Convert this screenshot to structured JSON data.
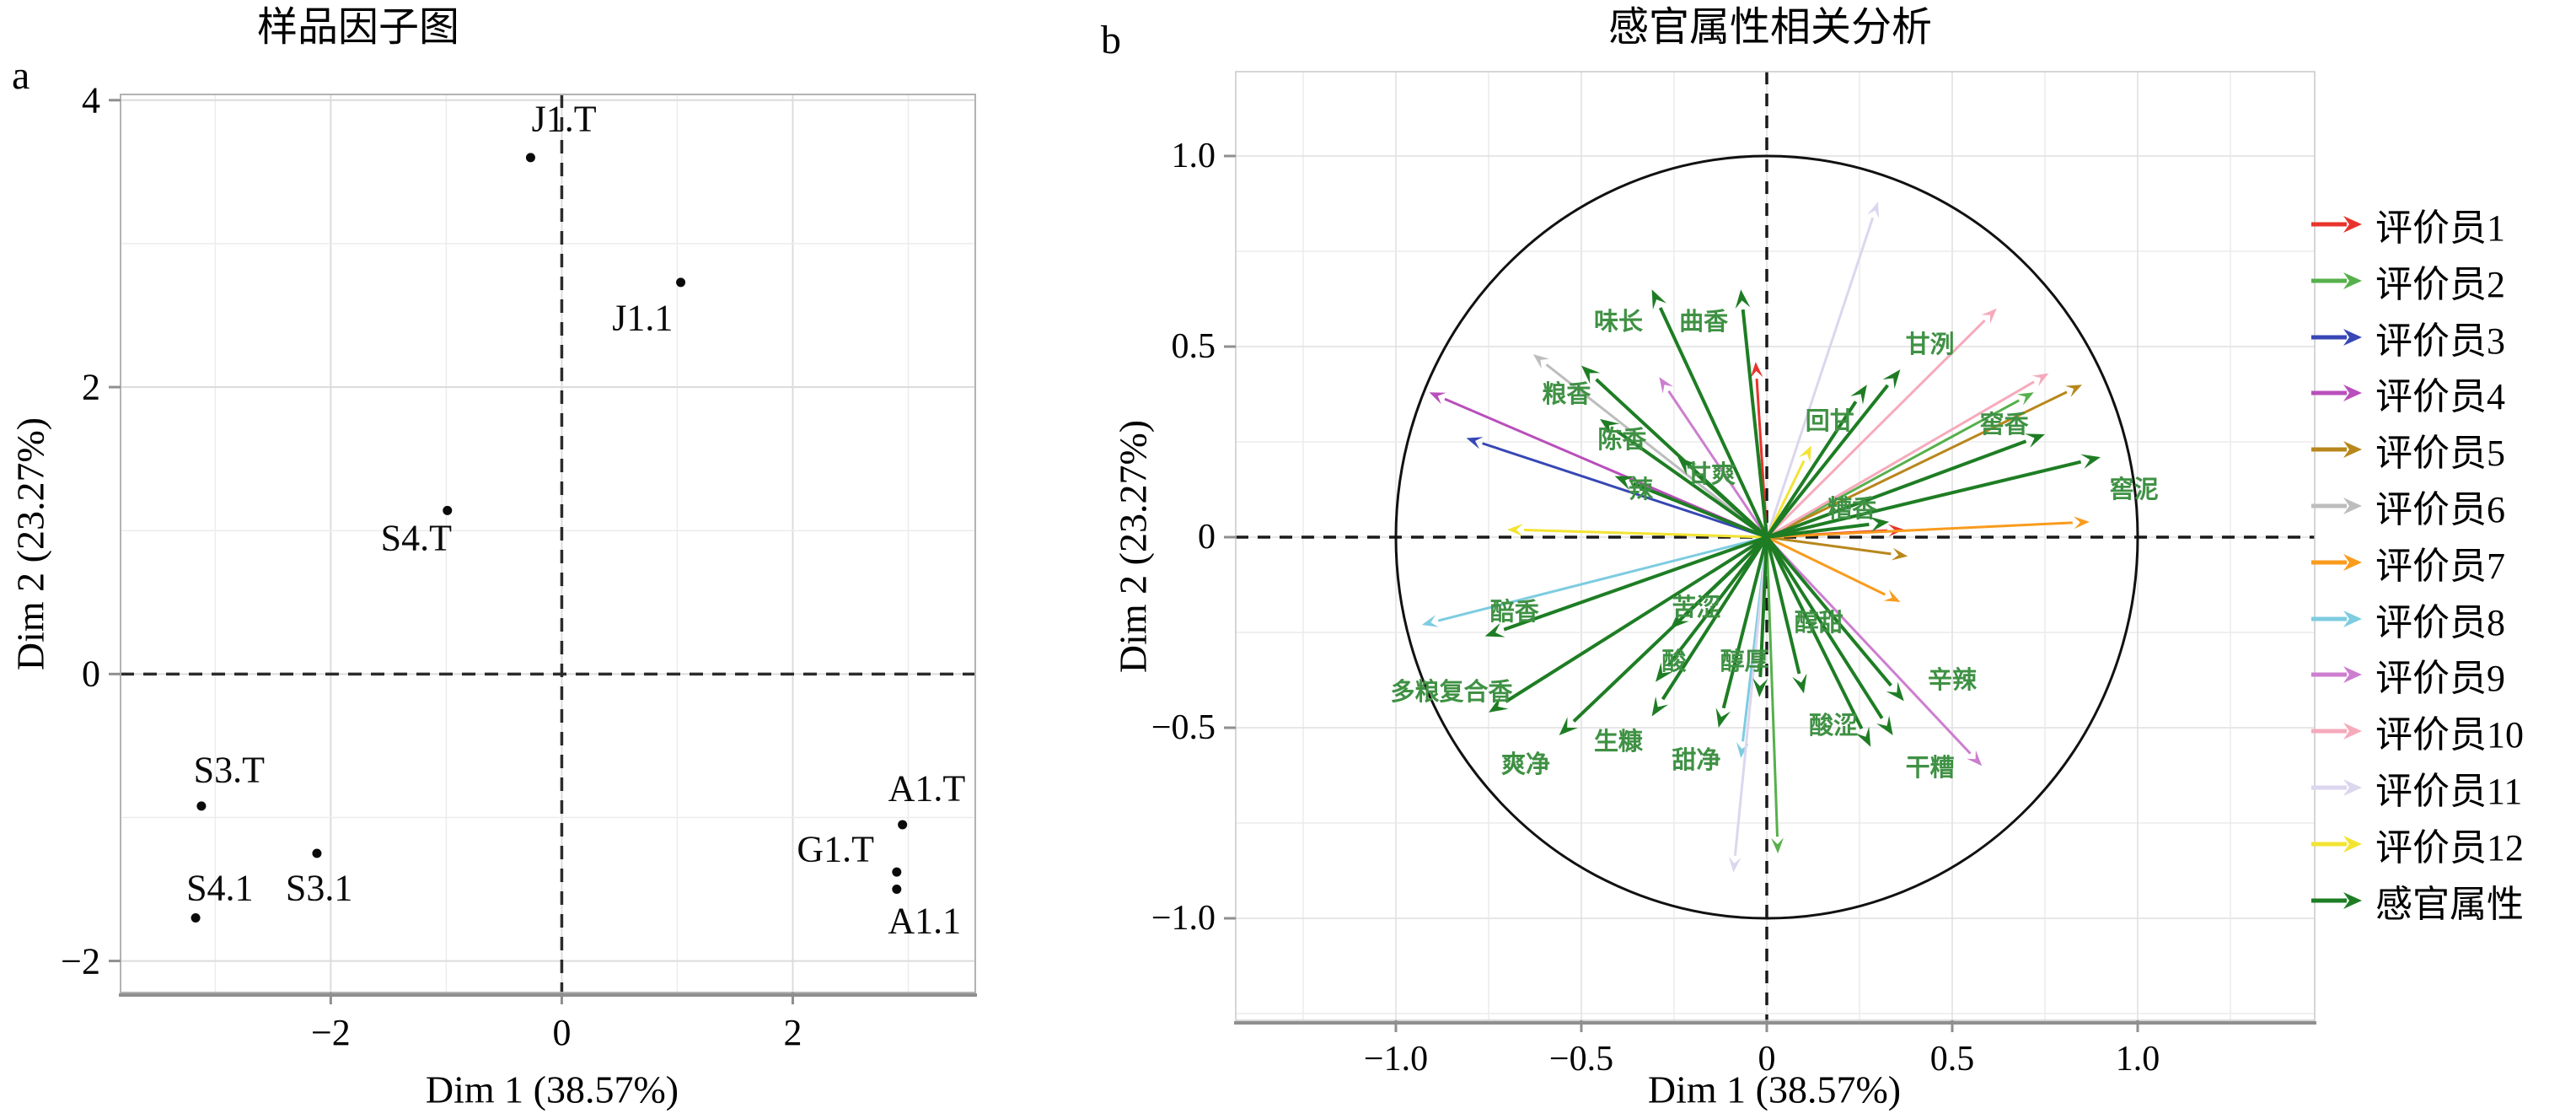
{
  "panel_a": {
    "tag": "a",
    "title": "样品因子图",
    "xlabel": "Dim 1 (38.57%)",
    "ylabel": "Dim 2 (23.27%)"
  },
  "panel_b": {
    "tag": "b",
    "title": "感官属性相关分析",
    "xlabel": "Dim 1 (38.57%)",
    "ylabel": "Dim 2 (23.27%)"
  },
  "chart_data": [
    {
      "type": "scatter",
      "title": "样品因子图",
      "xlabel": "Dim 1 (38.57%)",
      "ylabel": "Dim 2 (23.27%)",
      "xlim": [
        -3.82,
        3.58
      ],
      "ylim": [
        -2.22,
        4.04
      ],
      "xticks": [
        {
          "v": -2,
          "t": "−2"
        },
        {
          "v": 0,
          "t": "0"
        },
        {
          "v": 2,
          "t": "2"
        }
      ],
      "yticks": [
        {
          "v": -2,
          "t": "−2"
        },
        {
          "v": 0,
          "t": "0"
        },
        {
          "v": 2,
          "t": "2"
        },
        {
          "v": 4,
          "t": "4"
        }
      ],
      "grid": true,
      "zero_lines_dashed": true,
      "points": [
        {
          "label": "J1.T",
          "x": -0.27,
          "y": 3.6,
          "lx": 0.02,
          "ly": 3.87
        },
        {
          "label": "J1.1",
          "x": 1.03,
          "y": 2.73,
          "lx": 0.7,
          "ly": 2.48
        },
        {
          "label": "S4.T",
          "x": -0.99,
          "y": 1.14,
          "lx": -1.26,
          "ly": 0.95
        },
        {
          "label": "S3.T",
          "x": -3.12,
          "y": -0.92,
          "lx": -2.88,
          "ly": -0.67
        },
        {
          "label": "S4.1",
          "x": -3.17,
          "y": -1.7,
          "lx": -2.96,
          "ly": -1.49
        },
        {
          "label": "S3.1",
          "x": -2.12,
          "y": -1.25,
          "lx": -2.1,
          "ly": -1.49
        },
        {
          "label": "A1.T",
          "x": 2.95,
          "y": -1.05,
          "lx": 3.16,
          "ly": -0.8
        },
        {
          "label": "G1.T",
          "x": 2.9,
          "y": -1.38,
          "lx": 2.37,
          "ly": -1.22
        },
        {
          "label": "A1.1",
          "x": 2.9,
          "y": -1.5,
          "lx": 3.14,
          "ly": -1.72
        }
      ]
    },
    {
      "type": "correlation-circle",
      "title": "感官属性相关分析",
      "xlabel": "Dim 1 (38.57%)",
      "ylabel": "Dim 2 (23.27%)",
      "xlim": [
        -1.43,
        1.48
      ],
      "ylim": [
        -1.27,
        1.22
      ],
      "circle_radius": 1.0,
      "xticks": [
        {
          "v": -1.0,
          "t": "−1.0"
        },
        {
          "v": -0.5,
          "t": "−0.5"
        },
        {
          "v": 0,
          "t": "0"
        },
        {
          "v": 0.5,
          "t": "0.5"
        },
        {
          "v": 1.0,
          "t": "1.0"
        }
      ],
      "yticks": [
        {
          "v": -1.0,
          "t": "−1.0"
        },
        {
          "v": -0.5,
          "t": "−0.5"
        },
        {
          "v": 0,
          "t": "0"
        },
        {
          "v": 0.5,
          "t": "0.5"
        },
        {
          "v": 1.0,
          "t": "1.0"
        }
      ],
      "grid": true,
      "attribute_color": "#1e7d24",
      "attributes": [
        {
          "label": "味长",
          "tip": [
            -0.31,
            0.65
          ],
          "label_pos": [
            -0.4,
            0.57
          ]
        },
        {
          "label": "曲香",
          "tip": [
            -0.07,
            0.65
          ],
          "label_pos": [
            -0.17,
            0.57
          ]
        },
        {
          "label": "甘洌",
          "tip": [
            0.36,
            0.44
          ],
          "label_pos": [
            0.44,
            0.51
          ]
        },
        {
          "label": "回甘",
          "tip": [
            0.27,
            0.4
          ],
          "label_pos": [
            0.17,
            0.31
          ]
        },
        {
          "label": "窖香",
          "tip": [
            0.75,
            0.27
          ],
          "label_pos": [
            0.64,
            0.3
          ]
        },
        {
          "label": "窖泥",
          "tip": [
            0.9,
            0.21
          ],
          "label_pos": [
            0.99,
            0.13
          ]
        },
        {
          "label": "糟香",
          "tip": [
            0.33,
            0.04
          ],
          "label_pos": [
            0.23,
            0.08
          ]
        },
        {
          "label": "粮香",
          "tip": [
            -0.5,
            0.45
          ],
          "label_pos": [
            -0.54,
            0.38
          ]
        },
        {
          "label": "陈香",
          "tip": [
            -0.45,
            0.31
          ],
          "label_pos": [
            -0.39,
            0.26
          ]
        },
        {
          "label": "辣",
          "tip": [
            -0.41,
            0.16
          ],
          "label_pos": [
            -0.34,
            0.13
          ]
        },
        {
          "label": "甘爽",
          "tip": [
            -0.24,
            0.21
          ],
          "label_pos": [
            -0.15,
            0.17
          ]
        },
        {
          "label": "醅香",
          "tip": [
            -0.76,
            -0.26
          ],
          "label_pos": [
            -0.68,
            -0.19
          ]
        },
        {
          "label": "多粮复合香",
          "tip": [
            -0.75,
            -0.46
          ],
          "label_pos": [
            -0.85,
            -0.4
          ]
        },
        {
          "label": "爽净",
          "tip": [
            -0.56,
            -0.52
          ],
          "label_pos": [
            -0.65,
            -0.59
          ]
        },
        {
          "label": "生糠",
          "tip": [
            -0.31,
            -0.47
          ],
          "label_pos": [
            -0.4,
            -0.53
          ]
        },
        {
          "label": "甜净",
          "tip": [
            -0.13,
            -0.5
          ],
          "label_pos": [
            -0.19,
            -0.58
          ]
        },
        {
          "label": "苦涩",
          "tip": [
            -0.26,
            -0.24
          ],
          "label_pos": [
            -0.19,
            -0.18
          ]
        },
        {
          "label": "酸",
          "tip": [
            -0.3,
            -0.38
          ],
          "label_pos": [
            -0.25,
            -0.32
          ]
        },
        {
          "label": "醇厚",
          "tip": [
            -0.02,
            -0.42
          ],
          "label_pos": [
            -0.06,
            -0.32
          ]
        },
        {
          "label": "醇甜",
          "tip": [
            0.1,
            -0.41
          ],
          "label_pos": [
            0.14,
            -0.22
          ]
        },
        {
          "label": "辛辣",
          "tip": [
            0.37,
            -0.43
          ],
          "label_pos": [
            0.5,
            -0.37
          ]
        },
        {
          "label": "酸涩",
          "tip": [
            0.34,
            -0.52
          ],
          "label_pos": [
            0.18,
            -0.49
          ]
        },
        {
          "label": "干糟",
          "tip": [
            0.28,
            -0.55
          ],
          "label_pos": [
            0.44,
            -0.6
          ]
        }
      ],
      "evaluators": [
        {
          "name": "评价员1",
          "color": "#e8342c",
          "arrows": [
            [
              -0.03,
              0.46
            ],
            [
              0.37,
              0.02
            ]
          ]
        },
        {
          "name": "评价员2",
          "color": "#56b04c",
          "arrows": [
            [
              0.72,
              0.38
            ],
            [
              0.03,
              -0.83
            ]
          ]
        },
        {
          "name": "评价员3",
          "color": "#3747b5",
          "arrows": [
            [
              -0.81,
              0.26
            ]
          ]
        },
        {
          "name": "评价员4",
          "color": "#b94fbb",
          "arrows": [
            [
              -0.91,
              0.38
            ]
          ]
        },
        {
          "name": "评价员5",
          "color": "#b8871c",
          "arrows": [
            [
              0.85,
              0.4
            ],
            [
              0.38,
              -0.05
            ]
          ]
        },
        {
          "name": "评价员6",
          "color": "#bdbdbd",
          "arrows": [
            [
              -0.63,
              0.48
            ]
          ]
        },
        {
          "name": "评价员7",
          "color": "#f99b1d",
          "arrows": [
            [
              0.87,
              0.04
            ],
            [
              0.36,
              -0.17
            ]
          ]
        },
        {
          "name": "评价员8",
          "color": "#7dcce0",
          "arrows": [
            [
              -0.93,
              -0.23
            ],
            [
              -0.07,
              -0.58
            ]
          ]
        },
        {
          "name": "评价员9",
          "color": "#cc7ecf",
          "arrows": [
            [
              0.58,
              -0.6
            ],
            [
              -0.29,
              0.42
            ]
          ]
        },
        {
          "name": "评价员10",
          "color": "#f6aabc",
          "arrows": [
            [
              0.62,
              0.6
            ],
            [
              0.76,
              0.43
            ]
          ]
        },
        {
          "name": "评价员11",
          "color": "#dcd6ee",
          "arrows": [
            [
              -0.09,
              -0.88
            ],
            [
              0.3,
              0.88
            ]
          ]
        },
        {
          "name": "评价员12",
          "color": "#f3e433",
          "arrows": [
            [
              -0.7,
              0.02
            ],
            [
              0.12,
              0.24
            ]
          ]
        }
      ],
      "legend_attribute_label": "感官属性",
      "legend_position": "right"
    }
  ]
}
